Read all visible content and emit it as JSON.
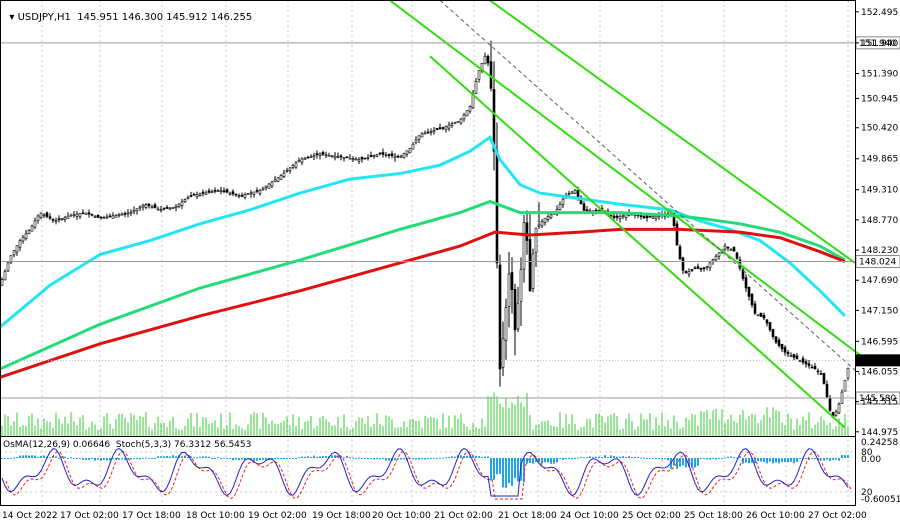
{
  "symbol": "USDJPY,H1",
  "quote": "145.951 146.300 145.912 146.255",
  "indicator_title": "OsMA(12,26,9) 0.06646  Stoch(5,3,3) 76.3312 56.5453",
  "colors": {
    "candle": "#000000",
    "ma_cyan": "#22e5f5",
    "ma_green": "#22dd77",
    "ma_red": "#e01010",
    "channel": "#33dd11",
    "volume": "#33cc33",
    "osma": "#1fa8e8",
    "stoch_main": "#2222cc",
    "stoch_signal": "#ee2222",
    "grid": "#c8c8c8"
  },
  "chart_data": {
    "type": "candlestick",
    "price_axis_ticks": [
      "152.495",
      "151.940",
      "151.390",
      "150.945",
      "150.420",
      "149.865",
      "149.310",
      "148.770",
      "148.230",
      "147.690",
      "147.150",
      "146.595",
      "146.055",
      "145.515",
      "144.975"
    ],
    "price_labels": {
      "current": "146.255",
      "level_top": "151.940",
      "level_mid": "148.024",
      "level_low": "145.580"
    },
    "time_axis_ticks": [
      "14 Oct 2022",
      "17 Oct 02:00",
      "17 Oct 18:00",
      "18 Oct 10:00",
      "19 Oct 02:00",
      "19 Oct 18:00",
      "20 Oct 10:00",
      "21 Oct 02:00",
      "21 Oct 18:00",
      "24 Oct 10:00",
      "25 Oct 02:00",
      "25 Oct 18:00",
      "26 Oct 10:00",
      "27 Oct 02:00"
    ],
    "indicator_axis_ticks": [
      "0.24258",
      "0.00",
      "80",
      "20",
      "-0.60051"
    ],
    "ylim": [
      144.9,
      152.6
    ],
    "close_path": [
      [
        0,
        147.6
      ],
      [
        10,
        148.1
      ],
      [
        20,
        148.4
      ],
      [
        30,
        148.6
      ],
      [
        40,
        148.9
      ],
      [
        55,
        148.75
      ],
      [
        70,
        148.85
      ],
      [
        85,
        148.9
      ],
      [
        100,
        148.8
      ],
      [
        115,
        148.85
      ],
      [
        130,
        148.9
      ],
      [
        145,
        149.05
      ],
      [
        160,
        148.95
      ],
      [
        175,
        149.0
      ],
      [
        190,
        149.2
      ],
      [
        205,
        149.25
      ],
      [
        220,
        149.3
      ],
      [
        240,
        149.2
      ],
      [
        260,
        149.3
      ],
      [
        280,
        149.55
      ],
      [
        300,
        149.85
      ],
      [
        320,
        149.95
      ],
      [
        340,
        149.9
      ],
      [
        360,
        149.85
      ],
      [
        380,
        149.95
      ],
      [
        400,
        149.9
      ],
      [
        410,
        150.05
      ],
      [
        420,
        150.3
      ],
      [
        440,
        150.4
      ],
      [
        460,
        150.55
      ],
      [
        470,
        150.8
      ],
      [
        478,
        151.4
      ],
      [
        485,
        151.7
      ],
      [
        490,
        151.5
      ],
      [
        494,
        150.0
      ],
      [
        497,
        148.0
      ],
      [
        500,
        146.1
      ],
      [
        505,
        147.0
      ],
      [
        510,
        148.0
      ],
      [
        515,
        146.8
      ],
      [
        520,
        147.6
      ],
      [
        525,
        149.0
      ],
      [
        530,
        147.5
      ],
      [
        535,
        148.6
      ],
      [
        545,
        148.8
      ],
      [
        555,
        148.9
      ],
      [
        565,
        149.2
      ],
      [
        575,
        149.3
      ],
      [
        585,
        148.9
      ],
      [
        600,
        148.95
      ],
      [
        615,
        148.8
      ],
      [
        630,
        148.9
      ],
      [
        645,
        148.8
      ],
      [
        660,
        148.85
      ],
      [
        672,
        148.9
      ],
      [
        678,
        148.2
      ],
      [
        684,
        147.8
      ],
      [
        695,
        147.9
      ],
      [
        705,
        147.9
      ],
      [
        715,
        148.1
      ],
      [
        725,
        148.3
      ],
      [
        735,
        148.2
      ],
      [
        745,
        147.6
      ],
      [
        755,
        147.1
      ],
      [
        765,
        147.0
      ],
      [
        775,
        146.6
      ],
      [
        785,
        146.4
      ],
      [
        795,
        146.3
      ],
      [
        805,
        146.2
      ],
      [
        815,
        146.1
      ],
      [
        822,
        146.0
      ],
      [
        827,
        145.6
      ],
      [
        832,
        145.2
      ],
      [
        838,
        145.4
      ],
      [
        845,
        145.9
      ],
      [
        850,
        146.255
      ]
    ],
    "ma_cyan": [
      [
        0,
        146.85
      ],
      [
        50,
        147.6
      ],
      [
        100,
        148.15
      ],
      [
        150,
        148.4
      ],
      [
        200,
        148.7
      ],
      [
        250,
        148.95
      ],
      [
        300,
        149.25
      ],
      [
        350,
        149.5
      ],
      [
        400,
        149.6
      ],
      [
        440,
        149.75
      ],
      [
        470,
        150.0
      ],
      [
        490,
        150.25
      ],
      [
        500,
        149.85
      ],
      [
        520,
        149.4
      ],
      [
        540,
        149.25
      ],
      [
        580,
        149.15
      ],
      [
        620,
        149.05
      ],
      [
        670,
        148.95
      ],
      [
        700,
        148.75
      ],
      [
        730,
        148.6
      ],
      [
        760,
        148.4
      ],
      [
        790,
        148.0
      ],
      [
        820,
        147.5
      ],
      [
        845,
        147.05
      ]
    ],
    "ma_green": [
      [
        0,
        146.1
      ],
      [
        100,
        146.9
      ],
      [
        200,
        147.55
      ],
      [
        300,
        148.05
      ],
      [
        400,
        148.6
      ],
      [
        460,
        148.9
      ],
      [
        490,
        149.1
      ],
      [
        520,
        148.9
      ],
      [
        560,
        148.9
      ],
      [
        620,
        148.9
      ],
      [
        670,
        148.85
      ],
      [
        700,
        148.8
      ],
      [
        740,
        148.7
      ],
      [
        780,
        148.55
      ],
      [
        820,
        148.3
      ],
      [
        845,
        148.05
      ]
    ],
    "ma_red": [
      [
        0,
        145.95
      ],
      [
        100,
        146.55
      ],
      [
        200,
        147.05
      ],
      [
        300,
        147.5
      ],
      [
        400,
        148.0
      ],
      [
        460,
        148.3
      ],
      [
        495,
        148.55
      ],
      [
        530,
        148.5
      ],
      [
        580,
        148.55
      ],
      [
        620,
        148.6
      ],
      [
        680,
        148.6
      ],
      [
        740,
        148.55
      ],
      [
        780,
        148.45
      ],
      [
        820,
        148.2
      ],
      [
        845,
        148.024
      ]
    ],
    "channel_lines": [
      [
        [
          390,
          152.7
        ],
        [
          860,
          146.35
        ]
      ],
      [
        [
          490,
          152.7
        ],
        [
          855,
          148.0
        ]
      ],
      [
        [
          430,
          151.7
        ],
        [
          845,
          145.05
        ]
      ],
      [
        [
          440,
          152.7
        ],
        [
          860,
          146.0
        ]
      ]
    ]
  }
}
